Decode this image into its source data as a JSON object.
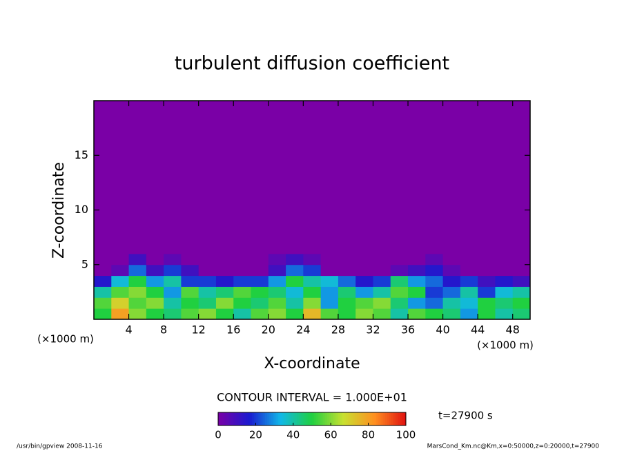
{
  "chart_data": {
    "type": "contour",
    "title": "turbulent diffusion coefficient",
    "x_label": "X-coordinate",
    "y_label": "Z-coordinate",
    "x_unit": "(×1000 m)",
    "y_unit": "(×1000 m)",
    "xlim": [
      0,
      50
    ],
    "ylim": [
      0,
      20
    ],
    "xticks": [
      4,
      8,
      12,
      16,
      20,
      24,
      28,
      32,
      36,
      40,
      44,
      48
    ],
    "yticks": [
      5,
      10,
      15
    ],
    "x_edges": [
      0,
      2,
      4,
      6,
      8,
      10,
      12,
      14,
      16,
      18,
      20,
      22,
      24,
      26,
      28,
      30,
      32,
      34,
      36,
      38,
      40,
      42,
      44,
      46,
      48,
      50
    ],
    "y_edges": [
      0,
      1,
      2,
      3,
      4,
      5,
      6,
      20
    ],
    "z": [
      [
        50,
        80,
        60,
        50,
        45,
        55,
        60,
        50,
        40,
        55,
        60,
        50,
        75,
        55,
        50,
        60,
        55,
        40,
        55,
        50,
        45,
        30,
        50,
        40,
        45
      ],
      [
        55,
        70,
        55,
        60,
        40,
        50,
        45,
        60,
        50,
        45,
        55,
        40,
        60,
        30,
        50,
        55,
        60,
        45,
        30,
        25,
        40,
        35,
        50,
        45,
        50
      ],
      [
        40,
        55,
        60,
        50,
        30,
        55,
        40,
        45,
        55,
        50,
        45,
        35,
        50,
        30,
        45,
        30,
        40,
        55,
        50,
        20,
        25,
        40,
        20,
        35,
        40
      ],
      [
        15,
        35,
        50,
        30,
        40,
        20,
        20,
        15,
        20,
        20,
        30,
        50,
        40,
        35,
        25,
        15,
        20,
        45,
        30,
        25,
        15,
        20,
        10,
        15,
        10
      ],
      [
        0,
        5,
        25,
        10,
        20,
        10,
        0,
        0,
        0,
        0,
        10,
        25,
        20,
        0,
        0,
        0,
        0,
        5,
        10,
        15,
        5,
        0,
        0,
        0,
        0
      ],
      [
        0,
        0,
        10,
        0,
        5,
        0,
        0,
        0,
        0,
        0,
        5,
        10,
        5,
        0,
        0,
        0,
        0,
        0,
        0,
        5,
        0,
        0,
        0,
        0,
        0
      ],
      [
        0,
        0,
        0,
        0,
        0,
        0,
        0,
        0,
        0,
        0,
        0,
        0,
        0,
        0,
        0,
        0,
        0,
        0,
        0,
        0,
        0,
        0,
        0,
        0,
        0
      ]
    ],
    "colormap": [
      "#7a00a6",
      "#1a1ad0",
      "#10b8e8",
      "#20d040",
      "#c8e030",
      "#ff9020",
      "#e01010"
    ],
    "clim": [
      0,
      100
    ],
    "cbar_ticks": [
      0,
      20,
      40,
      60,
      80,
      100
    ],
    "contour_note": "CONTOUR INTERVAL = 1.000E+01",
    "time_note": "t=27900 s",
    "footer_left": "/usr/bin/gpview  2008-11-16",
    "footer_right": "MarsCond_Km.nc@Km,x=0:50000,z=0:20000,t=27900"
  }
}
